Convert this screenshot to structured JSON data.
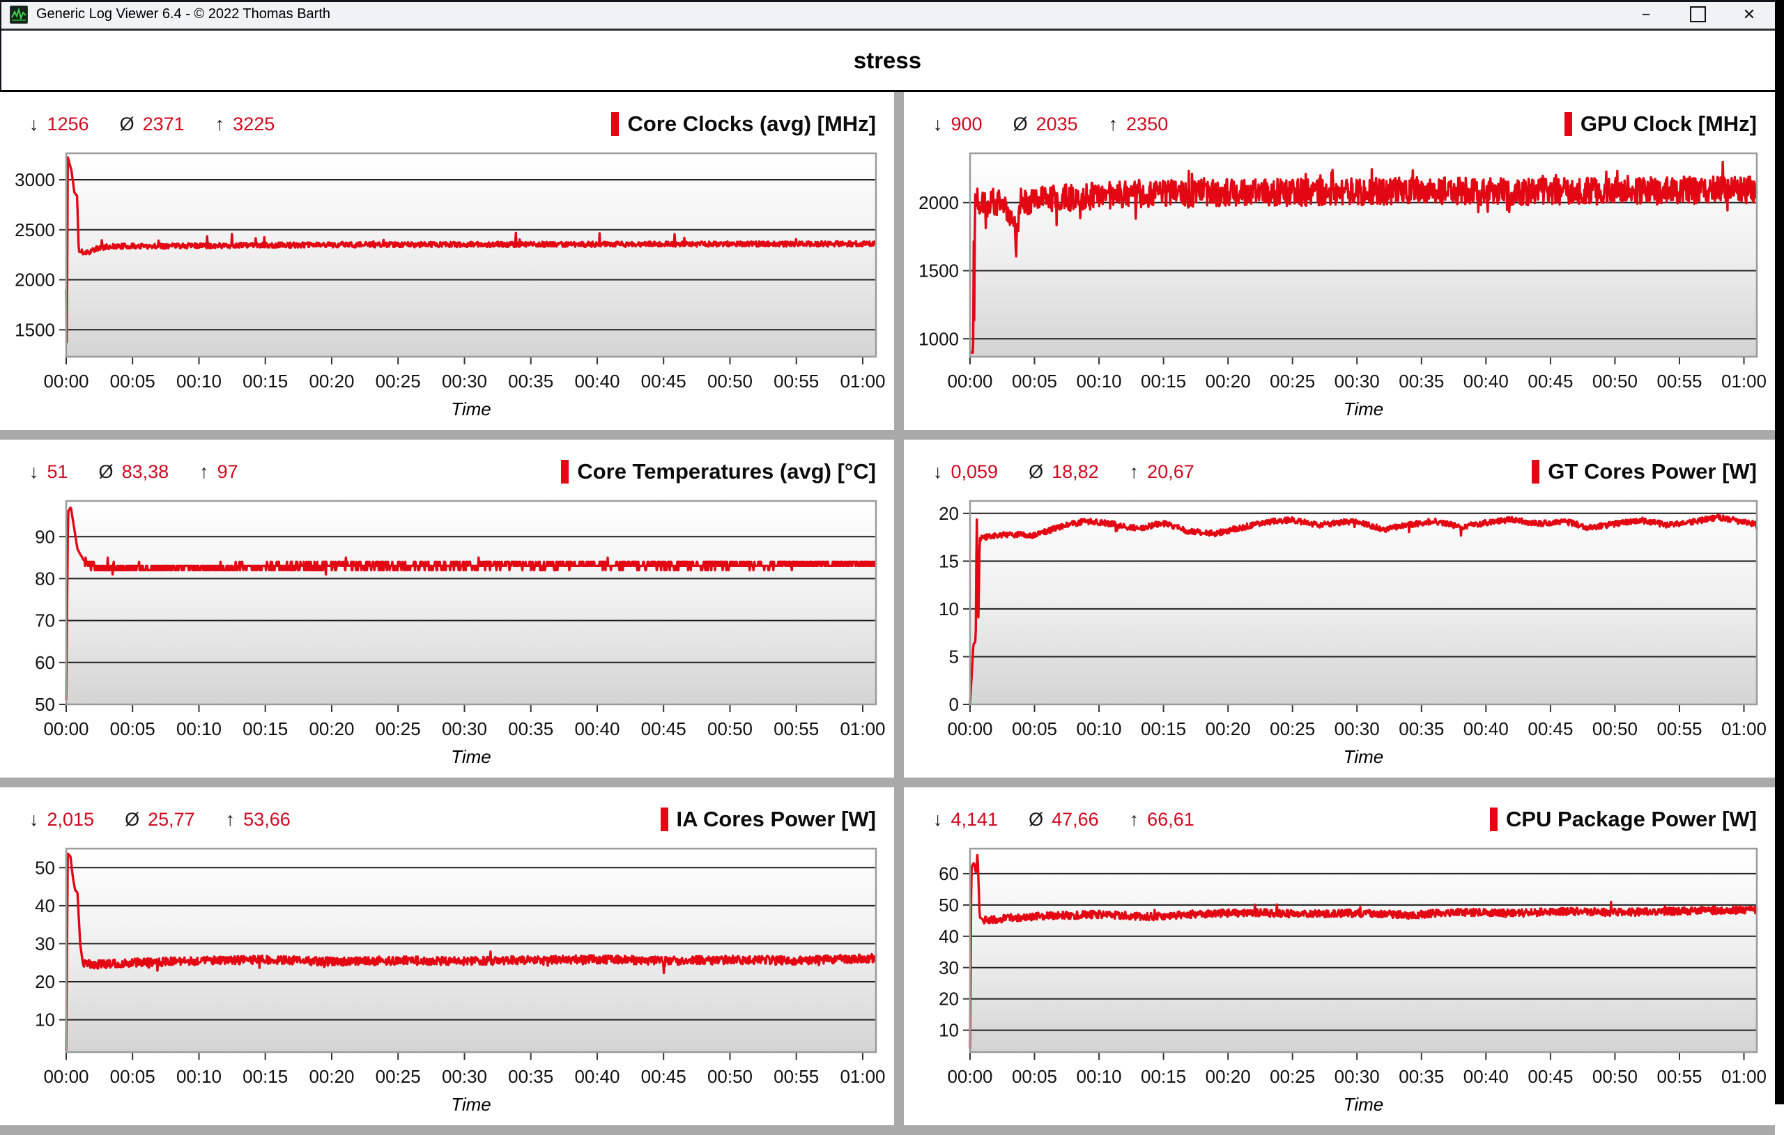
{
  "window": {
    "title": "Generic Log Viewer 6.4 - © 2022 Thomas Barth",
    "controls": {
      "minimize": "−",
      "maximize": "",
      "close": "✕"
    }
  },
  "page_title": "stress",
  "stat_icons": {
    "min": "↓",
    "avg": "Ø",
    "max": "↑"
  },
  "colors": {
    "series_red": "#e30613",
    "stat_value_red": "#cf0a1e",
    "gridline": "#1f1f1f",
    "plot_border": "#9b9b9b",
    "plot_bg_top": "#ffffff",
    "plot_bg_mid": "#efefef",
    "plot_bg_bottom": "#d4d4d4",
    "gutter_gray": "#a9a9a9"
  },
  "axis": {
    "xlabel": "Time",
    "x_range": [
      0,
      61
    ],
    "x_tick_minutes": [
      0,
      5,
      10,
      15,
      20,
      25,
      30,
      35,
      40,
      45,
      50,
      55,
      60
    ],
    "x_ticks": [
      "00:00",
      "00:05",
      "00:10",
      "00:15",
      "00:20",
      "00:25",
      "00:30",
      "00:35",
      "00:40",
      "00:45",
      "00:50",
      "00:55",
      "01:00"
    ]
  },
  "chart_data": [
    {
      "type": "line",
      "title": "Core Clocks (avg) [MHz]",
      "stats": {
        "min": "1256",
        "avg": "2371",
        "max": "3225"
      },
      "ylim": [
        1230,
        3265
      ],
      "y_ticks": [
        1500,
        2000,
        2500,
        3000
      ],
      "control_points": [
        [
          0,
          1900
        ],
        [
          0.05,
          1256
        ],
        [
          0.12,
          3225
        ],
        [
          0.4,
          3090
        ],
        [
          0.62,
          2870
        ],
        [
          0.82,
          2840
        ],
        [
          0.95,
          2280
        ],
        [
          1.6,
          2275
        ],
        [
          2.6,
          2325
        ],
        [
          4,
          2335
        ],
        [
          20,
          2350
        ],
        [
          40,
          2355
        ],
        [
          60.8,
          2360
        ]
      ],
      "noise": 26,
      "noise_from": 1.1,
      "spike_prob": 0.012,
      "spike_mult": 5,
      "spike_dir": 1,
      "seed": 11
    },
    {
      "type": "line",
      "title": "GPU Clock [MHz]",
      "stats": {
        "min": "900",
        "avg": "2035",
        "max": "2350"
      },
      "ylim": [
        868,
        2362
      ],
      "y_ticks": [
        1000,
        1500,
        2000
      ],
      "control_points": [
        [
          0,
          900
        ],
        [
          0.24,
          902
        ],
        [
          0.3,
          2000
        ],
        [
          0.33,
          980
        ],
        [
          0.38,
          2060
        ],
        [
          1,
          1990
        ],
        [
          2,
          2005
        ],
        [
          3.4,
          1910
        ],
        [
          3.6,
          1680
        ],
        [
          3.9,
          2010
        ],
        [
          8,
          2040
        ],
        [
          15,
          2070
        ],
        [
          25,
          2075
        ],
        [
          35,
          2085
        ],
        [
          45,
          2080
        ],
        [
          55,
          2090
        ],
        [
          60.8,
          2095
        ]
      ],
      "noise": 100,
      "noise_from": 0.45,
      "spike_prob": 0.06,
      "spike_mult": 1.3,
      "spike_dir": 0,
      "seed": 22
    },
    {
      "type": "line",
      "title": "Core Temperatures (avg) [°C]",
      "stats": {
        "min": "51",
        "avg": "83,38",
        "max": "97"
      },
      "ylim": [
        50,
        98.5
      ],
      "y_ticks": [
        50,
        60,
        70,
        80,
        90
      ],
      "control_points": [
        [
          0,
          51
        ],
        [
          0.14,
          96
        ],
        [
          0.35,
          97
        ],
        [
          0.55,
          93
        ],
        [
          0.85,
          87
        ],
        [
          1.3,
          84.5
        ],
        [
          2.2,
          82.5
        ],
        [
          3.5,
          82.3
        ],
        [
          20,
          83
        ],
        [
          40,
          83.2
        ],
        [
          60.8,
          83.4
        ]
      ],
      "noise": 0.9,
      "noise_from": 1.4,
      "spike_prob": 0.012,
      "spike_mult": 2,
      "spike_dir": 0,
      "quantize": 1,
      "seed": 33
    },
    {
      "type": "line",
      "title": "GT Cores Power [W]",
      "stats": {
        "min": "0,059",
        "avg": "18,82",
        "max": "20,67"
      },
      "ylim": [
        0,
        21.3
      ],
      "y_ticks": [
        0,
        5,
        10,
        15,
        20
      ],
      "control_points": [
        [
          0,
          0.059
        ],
        [
          0.26,
          6.3
        ],
        [
          0.44,
          6.6
        ],
        [
          0.52,
          20.6
        ],
        [
          0.58,
          12
        ],
        [
          0.63,
          7.4
        ],
        [
          0.75,
          17.4
        ],
        [
          1.6,
          17.6
        ],
        [
          3,
          17.8
        ],
        [
          5,
          17.7
        ],
        [
          7,
          18.6
        ],
        [
          9,
          19.2
        ],
        [
          11,
          18.9
        ],
        [
          13,
          18.4
        ],
        [
          15,
          19.0
        ],
        [
          17,
          18.1
        ],
        [
          19,
          17.9
        ],
        [
          21,
          18.5
        ],
        [
          23,
          19.1
        ],
        [
          25,
          19.3
        ],
        [
          27,
          18.8
        ],
        [
          30,
          19.2
        ],
        [
          32,
          18.3
        ],
        [
          34,
          18.8
        ],
        [
          36,
          19.2
        ],
        [
          38,
          18.6
        ],
        [
          40,
          19.0
        ],
        [
          42,
          19.4
        ],
        [
          44,
          18.9
        ],
        [
          46,
          19.2
        ],
        [
          48,
          18.5
        ],
        [
          50,
          18.9
        ],
        [
          52,
          19.3
        ],
        [
          54,
          18.8
        ],
        [
          56,
          19.1
        ],
        [
          58,
          19.6
        ],
        [
          60.8,
          18.9
        ]
      ],
      "noise": 0.3,
      "noise_from": 0.8,
      "spike_prob": 0.01,
      "spike_mult": 3,
      "spike_dir": -1,
      "seed": 44
    },
    {
      "type": "line",
      "title": "IA Cores Power [W]",
      "stats": {
        "min": "2,015",
        "avg": "25,77",
        "max": "53,66"
      },
      "ylim": [
        1.5,
        55
      ],
      "y_ticks": [
        10,
        20,
        30,
        40,
        50
      ],
      "control_points": [
        [
          0,
          2.015
        ],
        [
          0.12,
          53.66
        ],
        [
          0.32,
          53
        ],
        [
          0.52,
          47
        ],
        [
          0.68,
          44
        ],
        [
          0.85,
          43.5
        ],
        [
          1.05,
          30
        ],
        [
          1.25,
          25
        ],
        [
          2.2,
          24.5
        ],
        [
          5,
          25.0
        ],
        [
          10,
          25.5
        ],
        [
          15,
          25.8
        ],
        [
          20,
          25.3
        ],
        [
          25,
          25.6
        ],
        [
          30,
          25.4
        ],
        [
          35,
          25.7
        ],
        [
          40,
          25.9
        ],
        [
          45,
          25.5
        ],
        [
          50,
          25.8
        ],
        [
          55,
          25.6
        ],
        [
          60.8,
          26.2
        ]
      ],
      "noise": 1.1,
      "noise_from": 1.3,
      "spike_prob": 0.02,
      "spike_mult": 2.2,
      "spike_dir": 0,
      "seed": 55
    },
    {
      "type": "line",
      "title": "CPU Package Power [W]",
      "stats": {
        "min": "4,141",
        "avg": "47,66",
        "max": "66,61"
      },
      "ylim": [
        3,
        68
      ],
      "y_ticks": [
        10,
        20,
        30,
        40,
        50,
        60
      ],
      "control_points": [
        [
          0,
          4.141
        ],
        [
          0.1,
          62
        ],
        [
          0.3,
          63.5
        ],
        [
          0.47,
          60
        ],
        [
          0.58,
          66.6
        ],
        [
          0.75,
          46
        ],
        [
          1.1,
          45.2
        ],
        [
          3,
          45.8
        ],
        [
          6,
          46.5
        ],
        [
          10,
          47.0
        ],
        [
          14,
          46.3
        ],
        [
          18,
          47.2
        ],
        [
          22,
          47.6
        ],
        [
          26,
          47.0
        ],
        [
          30,
          47.4
        ],
        [
          34,
          46.8
        ],
        [
          38,
          47.8
        ],
        [
          42,
          47.3
        ],
        [
          46,
          48.0
        ],
        [
          50,
          47.6
        ],
        [
          54,
          47.9
        ],
        [
          58,
          48.3
        ],
        [
          60.8,
          48.5
        ]
      ],
      "noise": 1.2,
      "noise_from": 0.9,
      "spike_prob": 0.012,
      "spike_mult": 2,
      "spike_dir": 1,
      "seed": 66
    }
  ]
}
